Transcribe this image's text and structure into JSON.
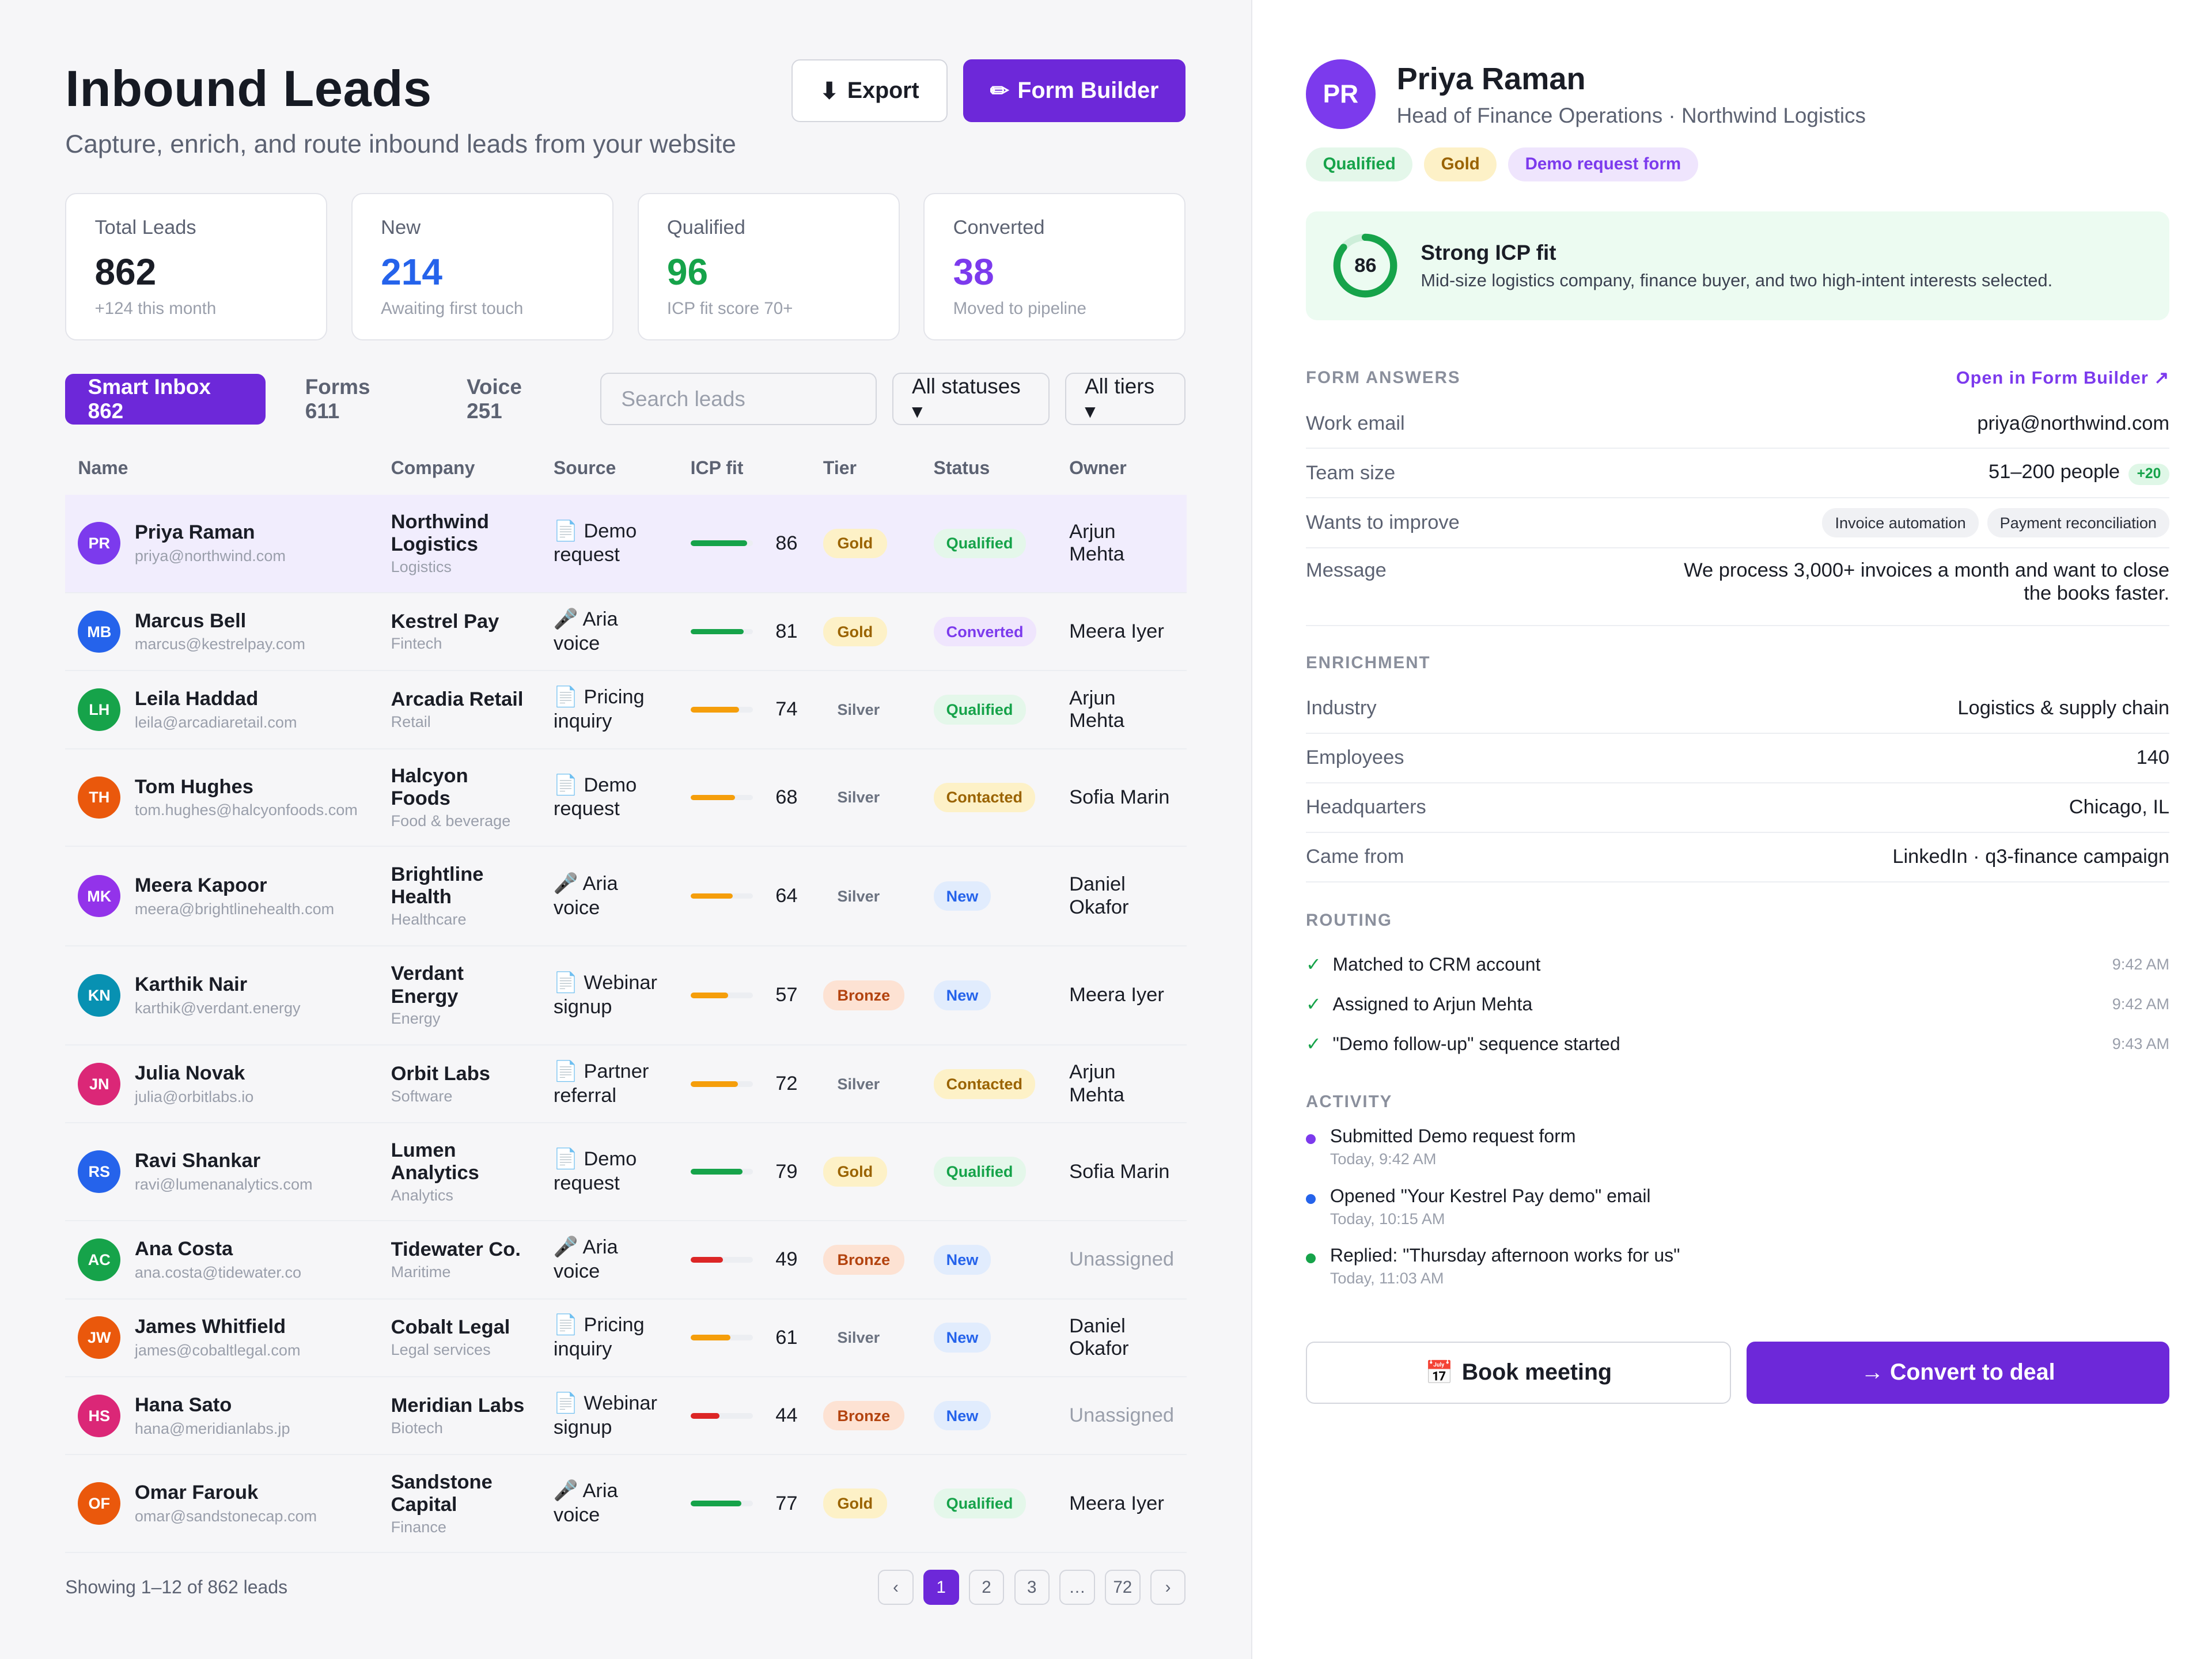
{
  "header": {
    "title": "Inbound Leads",
    "subtitle": "Capture, enrich, and route inbound leads from your website",
    "export_label": "Export",
    "export_icon": "⬇",
    "form_builder_label": "Form Builder",
    "form_builder_icon": "✏"
  },
  "stats": [
    {
      "label": "Total Leads",
      "value": "862",
      "sub": "+124 this month",
      "color": "#1a1d26"
    },
    {
      "label": "New",
      "value": "214",
      "sub": "Awaiting first touch",
      "color": "#2563eb"
    },
    {
      "label": "Qualified",
      "value": "96",
      "sub": "ICP fit score 70+",
      "color": "#16a34a"
    },
    {
      "label": "Converted",
      "value": "38",
      "sub": "Moved to pipeline",
      "color": "#7c3aed"
    }
  ],
  "toolbar": {
    "tabs": [
      "Smart Inbox 862",
      "Forms 611",
      "Voice 251"
    ],
    "search_placeholder": "Search leads",
    "status_filter": "All statuses ▾",
    "tier_filter": "All tiers ▾"
  },
  "table": {
    "columns": [
      "Name",
      "Company",
      "Source",
      "ICP fit",
      "Tier",
      "Status",
      "Owner"
    ],
    "rows": [
      {
        "initials": "PR",
        "color": "#7c3aed",
        "name": "Priya Raman",
        "email": "priya@northwind.com",
        "company": "Northwind Logistics",
        "industry": "Logistics",
        "source_icon": "📄",
        "source": "Demo request",
        "icp": 86,
        "tier": "Gold",
        "status": "Qualified",
        "owner": "Arjun Mehta",
        "selected": true
      },
      {
        "initials": "MB",
        "color": "#2563eb",
        "name": "Marcus Bell",
        "email": "marcus@kestrelpay.com",
        "company": "Kestrel Pay",
        "industry": "Fintech",
        "source_icon": "🎤",
        "source": "Aria voice",
        "icp": 81,
        "tier": "Gold",
        "status": "Converted",
        "owner": "Meera Iyer"
      },
      {
        "initials": "LH",
        "color": "#16a34a",
        "name": "Leila Haddad",
        "email": "leila@arcadiaretail.com",
        "company": "Arcadia Retail",
        "industry": "Retail",
        "source_icon": "📄",
        "source": "Pricing inquiry",
        "icp": 74,
        "tier": "Silver",
        "status": "Qualified",
        "owner": "Arjun Mehta"
      },
      {
        "initials": "TH",
        "color": "#ea580c",
        "name": "Tom Hughes",
        "email": "tom.hughes@halcyonfoods.com",
        "company": "Halcyon Foods",
        "industry": "Food & beverage",
        "source_icon": "📄",
        "source": "Demo request",
        "icp": 68,
        "tier": "Silver",
        "status": "Contacted",
        "owner": "Sofia Marin"
      },
      {
        "initials": "MK",
        "color": "#9333ea",
        "name": "Meera Kapoor",
        "email": "meera@brightlinehealth.com",
        "company": "Brightline Health",
        "industry": "Healthcare",
        "source_icon": "🎤",
        "source": "Aria voice",
        "icp": 64,
        "tier": "Silver",
        "status": "New",
        "owner": "Daniel Okafor"
      },
      {
        "initials": "KN",
        "color": "#0891b2",
        "name": "Karthik Nair",
        "email": "karthik@verdant.energy",
        "company": "Verdant Energy",
        "industry": "Energy",
        "source_icon": "📄",
        "source": "Webinar signup",
        "icp": 57,
        "tier": "Bronze",
        "status": "New",
        "owner": "Meera Iyer"
      },
      {
        "initials": "JN",
        "color": "#db2777",
        "name": "Julia Novak",
        "email": "julia@orbitlabs.io",
        "company": "Orbit Labs",
        "industry": "Software",
        "source_icon": "📄",
        "source": "Partner referral",
        "icp": 72,
        "tier": "Silver",
        "status": "Contacted",
        "owner": "Arjun Mehta"
      },
      {
        "initials": "RS",
        "color": "#2563eb",
        "name": "Ravi Shankar",
        "email": "ravi@lumenanalytics.com",
        "company": "Lumen Analytics",
        "industry": "Analytics",
        "source_icon": "📄",
        "source": "Demo request",
        "icp": 79,
        "tier": "Gold",
        "status": "Qualified",
        "owner": "Sofia Marin"
      },
      {
        "initials": "AC",
        "color": "#16a34a",
        "name": "Ana Costa",
        "email": "ana.costa@tidewater.co",
        "company": "Tidewater Co.",
        "industry": "Maritime",
        "source_icon": "🎤",
        "source": "Aria voice",
        "icp": 49,
        "tier": "Bronze",
        "status": "New",
        "owner": "Unassigned"
      },
      {
        "initials": "JW",
        "color": "#ea580c",
        "name": "James Whitfield",
        "email": "james@cobaltlegal.com",
        "company": "Cobalt Legal",
        "industry": "Legal services",
        "source_icon": "📄",
        "source": "Pricing inquiry",
        "icp": 61,
        "tier": "Silver",
        "status": "New",
        "owner": "Daniel Okafor"
      },
      {
        "initials": "HS",
        "color": "#db2777",
        "name": "Hana Sato",
        "email": "hana@meridianlabs.jp",
        "company": "Meridian Labs",
        "industry": "Biotech",
        "source_icon": "📄",
        "source": "Webinar signup",
        "icp": 44,
        "tier": "Bronze",
        "status": "New",
        "owner": "Unassigned"
      },
      {
        "initials": "OF",
        "color": "#ea580c",
        "name": "Omar Farouk",
        "email": "omar@sandstonecap.com",
        "company": "Sandstone Capital",
        "industry": "Finance",
        "source_icon": "🎤",
        "source": "Aria voice",
        "icp": 77,
        "tier": "Gold",
        "status": "Qualified",
        "owner": "Meera Iyer"
      }
    ]
  },
  "footer": {
    "showing": "Showing 1–12 of 862 leads",
    "pages": [
      "‹",
      "1",
      "2",
      "3",
      "…",
      "72",
      "›"
    ],
    "current_page": "1"
  },
  "detail": {
    "initials": "PR",
    "name": "Priya Raman",
    "role": "Head of Finance Operations · Northwind Logistics",
    "badges": [
      {
        "label": "Qualified",
        "bg": "#e4f7ea",
        "fg": "#16a34a"
      },
      {
        "label": "Gold",
        "bg": "#fdf1c7",
        "fg": "#9a6300"
      },
      {
        "label": "Demo request form",
        "bg": "#efe5fd",
        "fg": "#7c3aed"
      }
    ],
    "icp_score": 86,
    "icp_title": "Strong ICP fit",
    "icp_desc": "Mid-size logistics company, finance buyer, and two high-intent interests selected.",
    "form_answers_heading": "FORM ANSWERS",
    "open_form_builder": "Open in Form Builder ↗",
    "work_email_label": "Work email",
    "work_email": "priya@northwind.com",
    "team_size_label": "Team size",
    "team_size": "51–200 people",
    "team_size_bonus": "+20",
    "wants_label": "Wants to improve",
    "wants": [
      "Invoice automation",
      "Payment reconciliation"
    ],
    "message_label": "Message",
    "message": "We process 3,000+ invoices a month and want to close the books faster.",
    "enrichment_heading": "ENRICHMENT",
    "enrichment": [
      {
        "k": "Industry",
        "v": "Logistics & supply chain"
      },
      {
        "k": "Employees",
        "v": "140"
      },
      {
        "k": "Headquarters",
        "v": "Chicago, IL"
      },
      {
        "k": "Came from",
        "v": "LinkedIn · q3-finance campaign"
      }
    ],
    "routing_heading": "ROUTING",
    "routing": [
      {
        "text": "Matched to CRM account",
        "time": "9:42 AM"
      },
      {
        "text": "Assigned to Arjun Mehta",
        "time": "9:42 AM"
      },
      {
        "text": "\"Demo follow-up\" sequence started",
        "time": "9:43 AM"
      }
    ],
    "activity_heading": "ACTIVITY",
    "activity": [
      {
        "text": "Submitted Demo request form",
        "time": "Today, 9:42 AM",
        "color": "#7c3aed"
      },
      {
        "text": "Opened \"Your Kestrel Pay demo\" email",
        "time": "Today, 10:15 AM",
        "color": "#2563eb"
      },
      {
        "text": "Replied: \"Thursday afternoon works for us\"",
        "time": "Today, 11:03 AM",
        "color": "#16a34a"
      }
    ],
    "book_label": "Book meeting",
    "book_icon": "📅",
    "convert_label": "→ Convert to deal"
  }
}
